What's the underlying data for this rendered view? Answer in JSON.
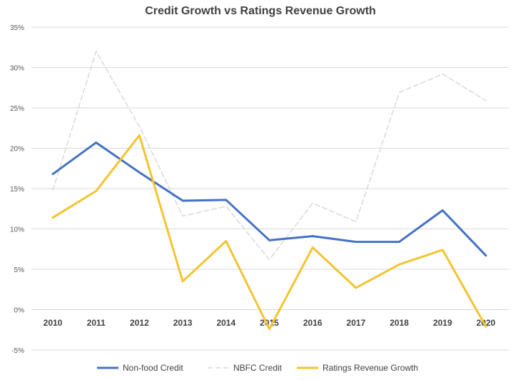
{
  "chart_data": {
    "type": "line",
    "title": "Credit Growth vs Ratings Revenue Growth",
    "x": [
      "2010",
      "2011",
      "2012",
      "2013",
      "2014",
      "2015",
      "2016",
      "2017",
      "2018",
      "2019",
      "2020"
    ],
    "ylim": [
      -5,
      35
    ],
    "yticks": [
      -5,
      0,
      5,
      10,
      15,
      20,
      25,
      30,
      35
    ],
    "ytick_labels": [
      "-5%",
      "0%",
      "5%",
      "10%",
      "15%",
      "20%",
      "25%",
      "30%",
      "35%"
    ],
    "grid": true,
    "legend_position": "bottom",
    "series": [
      {
        "name": "Non-food Credit",
        "color": "#4472c4",
        "dash": false,
        "values": [
          16.8,
          20.7,
          17.0,
          13.5,
          13.6,
          8.6,
          9.1,
          8.4,
          8.4,
          12.3,
          6.7
        ]
      },
      {
        "name": "NBFC Credit",
        "color": "#d9d9d9",
        "dash": true,
        "values": [
          14.8,
          32.0,
          22.7,
          11.6,
          12.8,
          6.2,
          13.2,
          10.9,
          26.9,
          29.2,
          25.9
        ]
      },
      {
        "name": "Ratings Revenue Growth",
        "color": "#f4c430",
        "dash": false,
        "values": [
          11.4,
          14.7,
          21.6,
          3.5,
          8.5,
          -2.4,
          7.7,
          2.7,
          5.6,
          7.4,
          -2.1
        ]
      }
    ]
  }
}
